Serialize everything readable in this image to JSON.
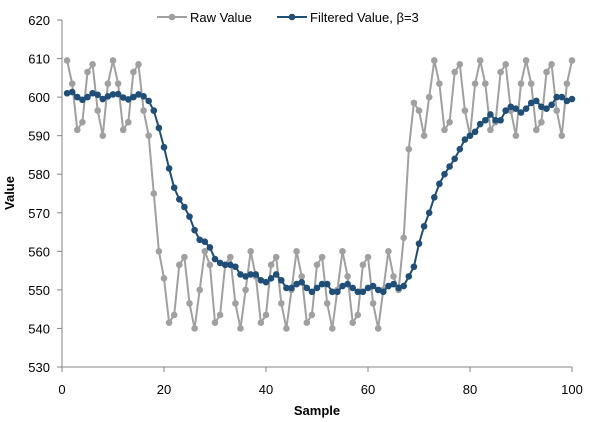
{
  "chart_data": {
    "type": "line",
    "title": "",
    "xlabel": "Sample",
    "ylabel": "Value",
    "xlim": [
      0,
      100
    ],
    "ylim": [
      530,
      620
    ],
    "xticks": [
      0,
      20,
      40,
      60,
      80,
      100
    ],
    "yticks": [
      530,
      540,
      550,
      560,
      570,
      580,
      590,
      600,
      610,
      620
    ],
    "grid": false,
    "legend_position": "top",
    "x": [
      1,
      2,
      3,
      4,
      5,
      6,
      7,
      8,
      9,
      10,
      11,
      12,
      13,
      14,
      15,
      16,
      17,
      18,
      19,
      20,
      21,
      22,
      23,
      24,
      25,
      26,
      27,
      28,
      29,
      30,
      31,
      32,
      33,
      34,
      35,
      36,
      37,
      38,
      39,
      40,
      41,
      42,
      43,
      44,
      45,
      46,
      47,
      48,
      49,
      50,
      51,
      52,
      53,
      54,
      55,
      56,
      57,
      58,
      59,
      60,
      61,
      62,
      63,
      64,
      65,
      66,
      67,
      68,
      69,
      70,
      71,
      72,
      73,
      74,
      75,
      76,
      77,
      78,
      79,
      80,
      81,
      82,
      83,
      84,
      85,
      86,
      87,
      88,
      89,
      90,
      91,
      92,
      93,
      94,
      95,
      96,
      97,
      98,
      99,
      100
    ],
    "series": [
      {
        "name": "Raw Value",
        "color": "#a0a0a0",
        "values": [
          609.5,
          603.5,
          591.5,
          593.5,
          606.5,
          608.5,
          596.5,
          590.0,
          603.5,
          609.5,
          603.5,
          591.5,
          593.5,
          606.5,
          608.5,
          596.5,
          590.0,
          575.0,
          560.0,
          553.0,
          541.5,
          543.5,
          556.5,
          558.5,
          546.5,
          540.0,
          550.0,
          560.0,
          556.5,
          541.5,
          543.5,
          556.5,
          558.5,
          546.5,
          540.0,
          550.0,
          560.0,
          553.5,
          541.5,
          543.5,
          556.5,
          558.5,
          546.5,
          540.0,
          550.0,
          560.0,
          553.5,
          541.5,
          543.5,
          556.5,
          558.5,
          546.5,
          540.0,
          550.0,
          560.0,
          553.5,
          541.5,
          543.5,
          556.5,
          558.5,
          546.5,
          540.0,
          550.0,
          560.0,
          553.5,
          550.0,
          563.5,
          586.5,
          598.5,
          596.5,
          590.0,
          600.0,
          609.5,
          603.5,
          591.5,
          593.5,
          606.5,
          608.5,
          596.5,
          590.0,
          603.5,
          609.5,
          603.5,
          591.5,
          593.5,
          606.5,
          608.5,
          596.5,
          590.0,
          603.5,
          609.5,
          603.5,
          591.5,
          593.5,
          606.5,
          608.5,
          596.5,
          590.0,
          603.5,
          609.5
        ]
      },
      {
        "name": "Filtered Value, β=3",
        "color": "#1f4e79",
        "values": [
          601.0,
          601.3,
          600.0,
          599.3,
          600.0,
          601.0,
          600.6,
          599.5,
          600.2,
          600.7,
          600.8,
          599.9,
          599.4,
          600.0,
          600.7,
          600.2,
          599.0,
          596.5,
          592.0,
          587.0,
          581.5,
          576.5,
          573.5,
          571.5,
          569.0,
          565.5,
          563.0,
          562.5,
          561.0,
          558.0,
          557.0,
          556.5,
          556.5,
          556.0,
          554.0,
          553.5,
          554.0,
          554.0,
          552.5,
          552.0,
          553.0,
          554.0,
          552.5,
          550.5,
          550.5,
          551.5,
          552.0,
          550.5,
          549.5,
          550.5,
          551.5,
          551.5,
          549.5,
          549.5,
          551.0,
          551.5,
          550.5,
          549.5,
          549.5,
          550.5,
          551.0,
          550.0,
          549.5,
          551.0,
          551.5,
          550.5,
          551.0,
          553.5,
          556.0,
          562.0,
          566.5,
          570.0,
          574.0,
          577.5,
          580.0,
          582.0,
          584.0,
          586.5,
          589.0,
          590.0,
          591.0,
          593.0,
          594.0,
          595.5,
          594.0,
          594.0,
          596.5,
          597.5,
          597.0,
          596.0,
          597.0,
          598.5,
          599.0,
          597.5,
          597.0,
          598.0,
          600.0,
          600.0,
          599.0,
          599.5
        ]
      }
    ]
  }
}
